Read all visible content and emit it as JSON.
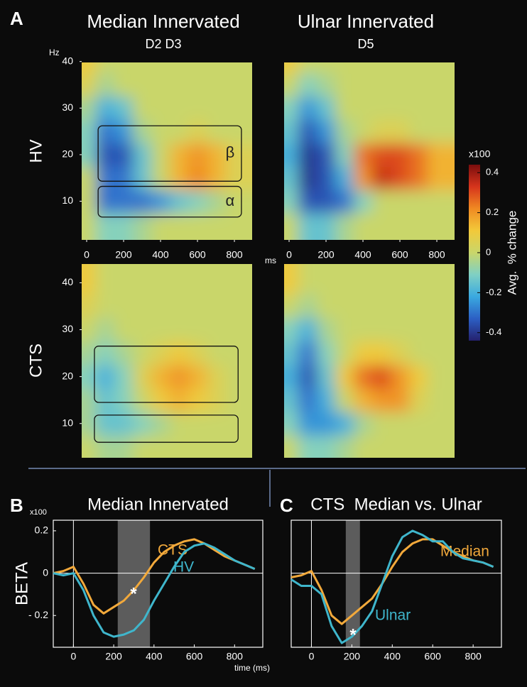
{
  "figure": {
    "panel_labels": [
      "A",
      "B",
      "C"
    ],
    "column_titles": [
      "Median Innervated",
      "Ulnar Innervated"
    ],
    "column_subtitles": [
      "D2 D3",
      "D5"
    ],
    "row_labels": [
      "HV",
      "CTS"
    ]
  },
  "colorbar": {
    "title": "Avg.  % change",
    "scale_label": "x100",
    "clim": [
      -0.44,
      0.44
    ],
    "ticks": [
      0.4,
      0.2,
      0,
      -0.2,
      -0.4
    ],
    "colormap": [
      "#25216e",
      "#2c5fc4",
      "#3aa9e0",
      "#7fd0c4",
      "#c9d66a",
      "#f2c93a",
      "#f08a22",
      "#d6341c",
      "#7a0d0d"
    ]
  },
  "chart_data": [
    {
      "type": "heatmap",
      "xlabel": "ms",
      "ylabel": "Hz",
      "x": [
        0,
        100,
        200,
        300,
        400,
        500,
        600,
        700,
        800
      ],
      "y": [
        5,
        10,
        15,
        20,
        25,
        30,
        35,
        40
      ],
      "z": [
        [
          0,
          -0.1,
          -0.1,
          -0.05,
          0,
          0,
          0,
          0,
          0
        ],
        [
          0,
          -0.3,
          -0.3,
          -0.3,
          -0.25,
          -0.15,
          -0.1,
          -0.05,
          0
        ],
        [
          0,
          -0.3,
          -0.3,
          -0.15,
          0,
          0.15,
          0.22,
          0.15,
          0.05
        ],
        [
          -0.1,
          -0.35,
          -0.35,
          -0.15,
          0,
          0.15,
          0.2,
          0.15,
          0.05
        ],
        [
          -0.1,
          -0.3,
          -0.25,
          -0.05,
          0,
          0,
          0.05,
          0,
          0
        ],
        [
          -0.05,
          -0.2,
          -0.15,
          0,
          0,
          0,
          0,
          0,
          0
        ],
        [
          0.05,
          -0.05,
          0,
          0,
          0,
          0,
          0,
          0,
          0
        ],
        [
          0.1,
          0,
          0,
          0,
          0,
          0,
          0,
          0,
          0
        ]
      ],
      "xlim": [
        -27,
        896
      ],
      "ylim": [
        1.7,
        39.8
      ],
      "xticks": [
        0,
        200,
        400,
        600,
        800
      ],
      "yticks": [
        10,
        20,
        30,
        40
      ],
      "regions": [
        {
          "label": "β",
          "x": [
            62,
            838
          ],
          "y": [
            14.3,
            26.2
          ]
        },
        {
          "label": "α",
          "x": [
            62,
            838
          ],
          "y": [
            6.6,
            13.2
          ]
        }
      ]
    },
    {
      "type": "heatmap",
      "x": [
        0,
        100,
        200,
        300,
        400,
        500,
        600,
        700,
        800
      ],
      "y": [
        5,
        10,
        15,
        20,
        25,
        30,
        35,
        40
      ],
      "z": [
        [
          0,
          -0.15,
          -0.15,
          -0.05,
          0,
          0,
          0,
          0,
          0
        ],
        [
          -0.1,
          -0.35,
          -0.35,
          -0.3,
          -0.1,
          0,
          0,
          0,
          0
        ],
        [
          -0.15,
          -0.4,
          -0.35,
          -0.2,
          0.2,
          0.35,
          0.3,
          0.25,
          0.15
        ],
        [
          -0.2,
          -0.4,
          -0.35,
          -0.1,
          0.25,
          0.3,
          0.3,
          0.25,
          0.15
        ],
        [
          -0.15,
          -0.35,
          -0.25,
          -0.05,
          0,
          0.05,
          0.05,
          0,
          0
        ],
        [
          -0.1,
          -0.25,
          -0.15,
          0,
          0,
          0,
          0,
          0,
          0
        ],
        [
          0,
          -0.1,
          -0.05,
          0,
          0,
          0,
          0,
          0,
          0
        ],
        [
          0.1,
          0,
          0,
          0,
          0,
          0,
          0,
          0,
          0
        ]
      ],
      "xlim": [
        -27,
        896
      ],
      "ylim": [
        1.7,
        39.8
      ],
      "xticks": [
        0,
        200,
        400,
        600,
        800
      ]
    },
    {
      "type": "heatmap",
      "x": [
        0,
        100,
        200,
        300,
        400,
        500,
        600,
        700,
        800
      ],
      "y": [
        5,
        10,
        15,
        20,
        25,
        30,
        35,
        40
      ],
      "z": [
        [
          0,
          -0.05,
          -0.05,
          0,
          0,
          0,
          0,
          0,
          0
        ],
        [
          -0.05,
          -0.15,
          -0.15,
          -0.1,
          -0.05,
          0,
          0,
          0,
          0
        ],
        [
          -0.05,
          -0.15,
          -0.1,
          0,
          0.1,
          0.15,
          0.1,
          0.05,
          0
        ],
        [
          -0.1,
          -0.2,
          -0.1,
          0.05,
          0.15,
          0.2,
          0.15,
          0.05,
          0
        ],
        [
          -0.05,
          -0.1,
          -0.05,
          0,
          0.05,
          0.1,
          0.05,
          0,
          0
        ],
        [
          0,
          -0.05,
          0,
          0,
          0,
          0,
          0,
          0,
          0
        ],
        [
          0.05,
          0,
          0,
          0,
          0,
          0,
          0,
          0,
          0
        ],
        [
          0.1,
          0,
          0,
          0,
          0,
          0,
          0,
          0,
          0
        ]
      ],
      "xlim": [
        -27,
        896
      ],
      "ylim": [
        2.7,
        44
      ],
      "yticks": [
        10,
        20,
        30,
        40
      ],
      "regions": [
        {
          "x": [
            42,
            820
          ],
          "y": [
            14.5,
            26.5
          ]
        },
        {
          "x": [
            42,
            820
          ],
          "y": [
            6,
            11.8
          ]
        }
      ]
    },
    {
      "type": "heatmap",
      "x": [
        0,
        100,
        200,
        300,
        400,
        500,
        600,
        700,
        800
      ],
      "y": [
        5,
        10,
        15,
        20,
        25,
        30,
        35,
        40
      ],
      "z": [
        [
          0,
          -0.1,
          -0.1,
          -0.05,
          0,
          0,
          0,
          0,
          0
        ],
        [
          -0.1,
          -0.25,
          -0.25,
          -0.2,
          -0.05,
          0,
          0,
          0,
          0
        ],
        [
          -0.15,
          -0.3,
          -0.2,
          0,
          0.15,
          0.2,
          0.2,
          0.05,
          0
        ],
        [
          -0.2,
          -0.35,
          -0.15,
          0.1,
          0.25,
          0.3,
          0.2,
          0.1,
          0
        ],
        [
          -0.15,
          -0.3,
          -0.1,
          0,
          0.1,
          0.1,
          0.05,
          0,
          0
        ],
        [
          -0.1,
          -0.2,
          -0.05,
          0,
          0,
          0,
          0,
          0,
          0
        ],
        [
          0,
          -0.05,
          0,
          0,
          0,
          0,
          0,
          0,
          0
        ],
        [
          0.1,
          0,
          0,
          0,
          0,
          0,
          0,
          0,
          0
        ]
      ],
      "xlim": [
        -27,
        896
      ],
      "ylim": [
        2.7,
        44
      ]
    },
    {
      "type": "line",
      "title": "Median Innervated",
      "ylabel": "BETA",
      "scale_label": "x100",
      "xlabel": "time (ms)",
      "x": [
        -100,
        -50,
        0,
        50,
        100,
        150,
        200,
        250,
        300,
        350,
        400,
        450,
        500,
        550,
        600,
        650,
        700,
        750,
        800,
        850,
        900
      ],
      "series": [
        {
          "name": "CTS",
          "color": "#f2a93b",
          "values": [
            0,
            0.01,
            0.03,
            -0.05,
            -0.15,
            -0.19,
            -0.16,
            -0.13,
            -0.08,
            -0.02,
            0.05,
            0.1,
            0.13,
            0.15,
            0.16,
            0.14,
            0.11,
            0.08,
            0.06,
            0.04,
            0.02
          ]
        },
        {
          "name": "HV",
          "color": "#3fb6cc",
          "values": [
            0,
            -0.01,
            0,
            -0.08,
            -0.2,
            -0.28,
            -0.3,
            -0.29,
            -0.27,
            -0.22,
            -0.13,
            -0.05,
            0.03,
            0.1,
            0.13,
            0.14,
            0.12,
            0.09,
            0.06,
            0.04,
            0.02
          ]
        }
      ],
      "xlim": [
        -100,
        940
      ],
      "ylim": [
        -0.35,
        0.25
      ],
      "xticks": [
        0,
        200,
        400,
        600,
        800
      ],
      "yticks": [
        0.2,
        0,
        {
          "value": -0.2,
          "label": "- 0.2"
        }
      ],
      "highlight": [
        220,
        380
      ],
      "reference_lines": {
        "x": 0,
        "y": 0
      },
      "annotations": [
        "*"
      ]
    },
    {
      "type": "line",
      "title": "CTS  Median vs. Ulnar",
      "x": [
        -100,
        -50,
        0,
        50,
        100,
        150,
        200,
        250,
        300,
        350,
        400,
        450,
        500,
        550,
        600,
        650,
        700,
        750,
        800,
        850,
        900
      ],
      "series": [
        {
          "name": "Median",
          "color": "#f2a93b",
          "values": [
            -0.02,
            -0.01,
            0.01,
            -0.08,
            -0.2,
            -0.24,
            -0.2,
            -0.16,
            -0.12,
            -0.05,
            0.03,
            0.1,
            0.14,
            0.16,
            0.16,
            0.13,
            0.1,
            0.08,
            0.06,
            0.05,
            0.03
          ]
        },
        {
          "name": "Ulnar",
          "color": "#3fb6cc",
          "values": [
            -0.03,
            -0.06,
            -0.06,
            -0.1,
            -0.25,
            -0.33,
            -0.3,
            -0.25,
            -0.18,
            -0.05,
            0.08,
            0.17,
            0.2,
            0.18,
            0.15,
            0.15,
            0.1,
            0.07,
            0.06,
            0.05,
            0.03
          ]
        }
      ],
      "xlim": [
        -100,
        940
      ],
      "ylim": [
        -0.35,
        0.25
      ],
      "xticks": [
        0,
        200,
        400,
        600,
        800
      ],
      "highlight": [
        170,
        240
      ],
      "reference_lines": {
        "x": 0,
        "y": 0
      },
      "annotations": [
        "*"
      ]
    }
  ]
}
